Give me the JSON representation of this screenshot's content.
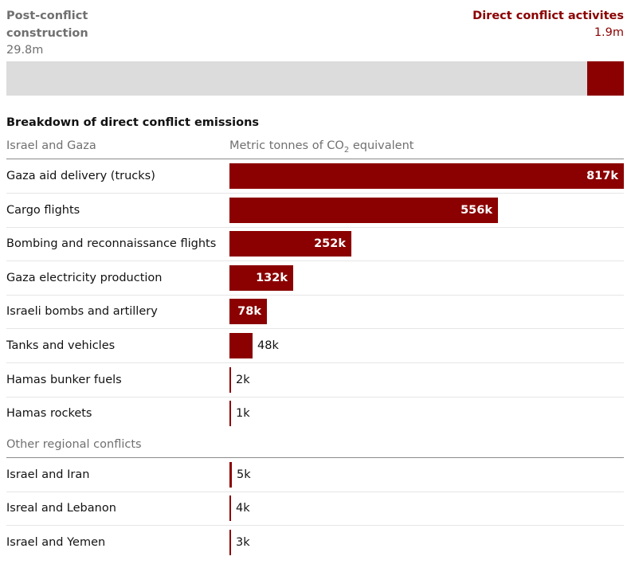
{
  "colors": {
    "accent": "#8b0000",
    "track": "#dcdcdc",
    "muted": "#707070"
  },
  "split": {
    "left_label": "Post-conflict construction",
    "left_value": "29.8m",
    "left_amount": 29.8,
    "right_label": "Direct conflict activites",
    "right_value": "1.9m",
    "right_amount": 1.9
  },
  "chart_data": {
    "type": "bar",
    "orientation": "horizontal",
    "title": "Breakdown of direct conflict emissions",
    "xlabel_prefix": "Metric tonnes of CO",
    "xlabel_sub": "2",
    "xlabel_suffix": " equivalent",
    "groups": [
      {
        "name": "Israel and Gaza",
        "categories": [
          "Gaza aid delivery (trucks)",
          "Cargo flights",
          "Bombing and reconnaissance flights",
          "Gaza electricity production",
          "Israeli bombs and artillery",
          "Tanks and vehicles",
          "Hamas bunker fuels",
          "Hamas rockets"
        ],
        "values": [
          817,
          556,
          252,
          132,
          78,
          48,
          2,
          1
        ],
        "labels": [
          "817k",
          "556k",
          "252k",
          "132k",
          "78k",
          "48k",
          "2k",
          "1k"
        ]
      },
      {
        "name": "Other regional conflicts",
        "categories": [
          "Israel and Iran",
          "Isreal and Lebanon",
          "Israel and Yemen"
        ],
        "values": [
          5,
          4,
          3
        ],
        "labels": [
          "5k",
          "4k",
          "3k"
        ]
      }
    ],
    "units": "thousand tonnes CO2e",
    "xlim": [
      0,
      817
    ]
  }
}
